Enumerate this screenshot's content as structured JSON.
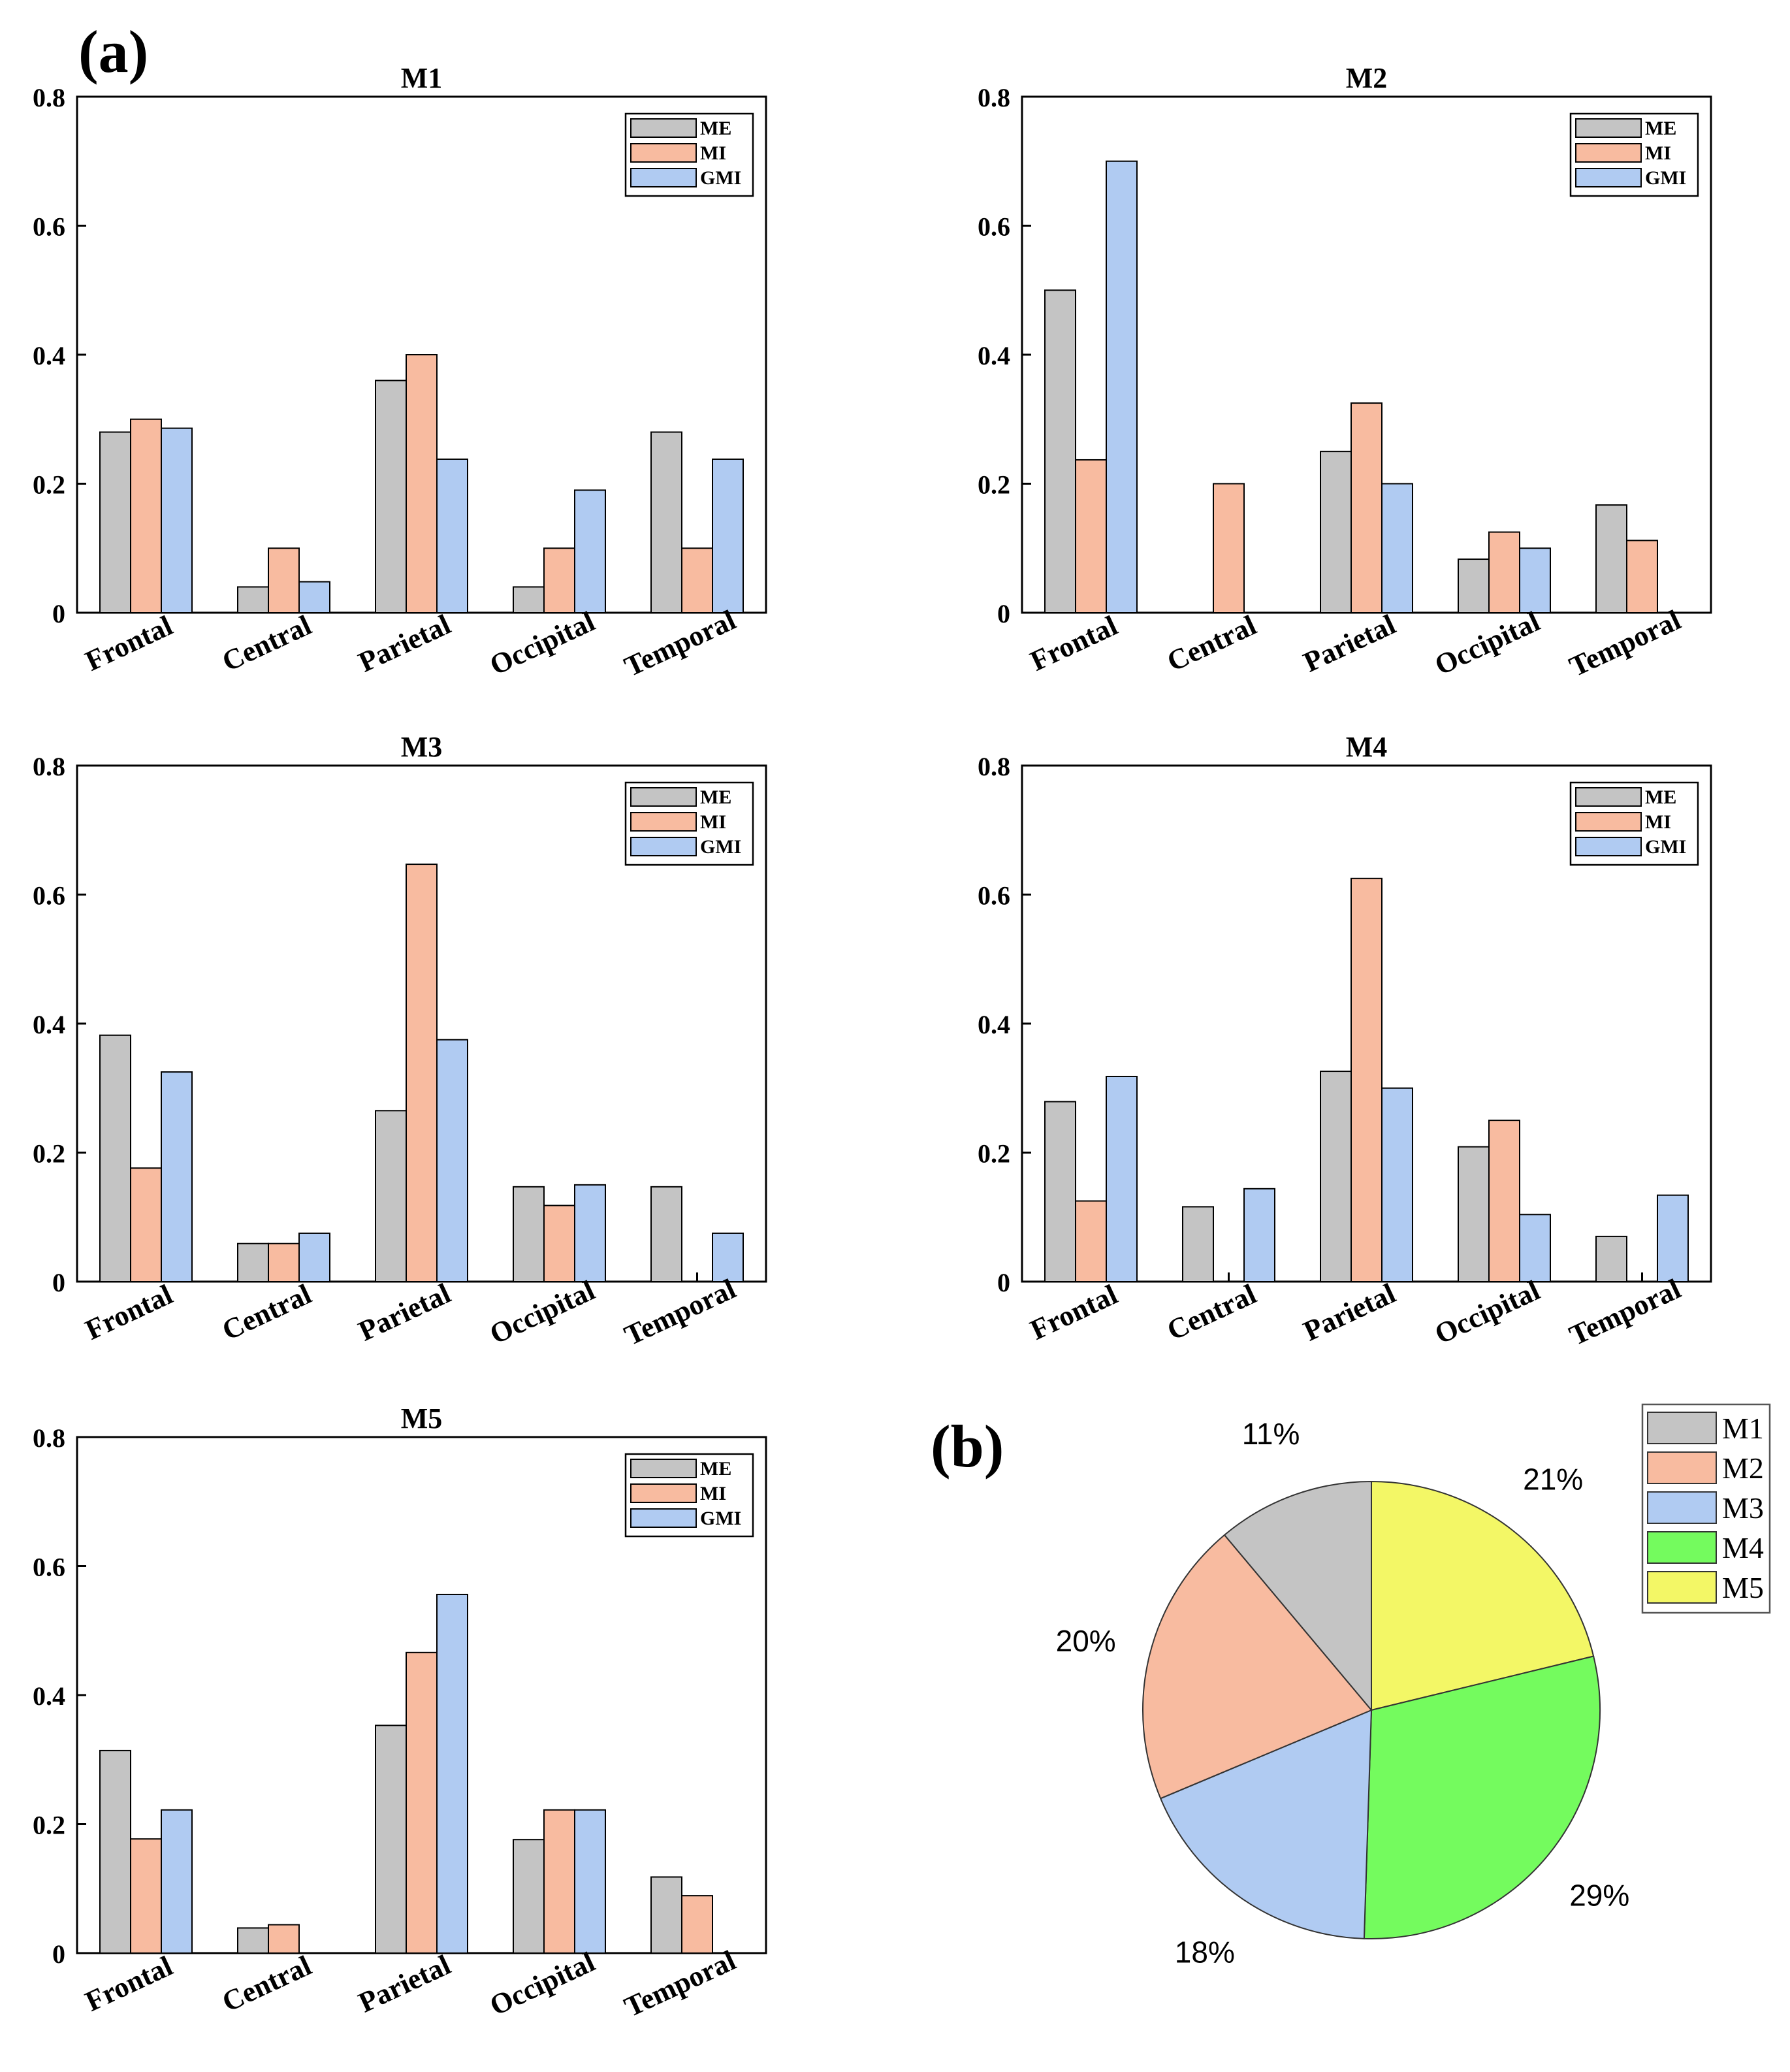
{
  "panel_a_label": "(a)",
  "panel_b_label": "(b)",
  "chart_data": [
    {
      "type": "bar",
      "title": "M1",
      "categories": [
        "Frontal",
        "Central",
        "Parietal",
        "Occipital",
        "Temporal"
      ],
      "series": [
        {
          "name": "ME",
          "color": "#c4c4c4",
          "values": [
            0.28,
            0.04,
            0.36,
            0.04,
            0.28
          ]
        },
        {
          "name": "MI",
          "color": "#f8bba0",
          "values": [
            0.3,
            0.1,
            0.4,
            0.1,
            0.1
          ]
        },
        {
          "name": "GMI",
          "color": "#b0cbf2",
          "values": [
            0.286,
            0.048,
            0.238,
            0.19,
            0.238
          ]
        }
      ],
      "ylim": [
        0,
        0.8
      ],
      "yticks": [
        "0",
        "0.2",
        "0.4",
        "0.6",
        "0.8"
      ],
      "legend": "top-right"
    },
    {
      "type": "bar",
      "title": "M2",
      "categories": [
        "Frontal",
        "Central",
        "Parietal",
        "Occipital",
        "Temporal"
      ],
      "series": [
        {
          "name": "ME",
          "color": "#c4c4c4",
          "values": [
            0.5,
            0,
            0.25,
            0.083,
            0.167
          ]
        },
        {
          "name": "MI",
          "color": "#f8bba0",
          "values": [
            0.237,
            0.2,
            0.325,
            0.125,
            0.112
          ]
        },
        {
          "name": "GMI",
          "color": "#b0cbf2",
          "values": [
            0.7,
            0,
            0.2,
            0.1,
            0
          ]
        }
      ],
      "ylim": [
        0,
        0.8
      ],
      "yticks": [
        "0",
        "0.2",
        "0.4",
        "0.6",
        "0.8"
      ],
      "legend": "top-right"
    },
    {
      "type": "bar",
      "title": "M3",
      "categories": [
        "Frontal",
        "Central",
        "Parietal",
        "Occipital",
        "Temporal"
      ],
      "series": [
        {
          "name": "ME",
          "color": "#c4c4c4",
          "values": [
            0.382,
            0.059,
            0.265,
            0.147,
            0.147
          ]
        },
        {
          "name": "MI",
          "color": "#f8bba0",
          "values": [
            0.176,
            0.059,
            0.647,
            0.118,
            0
          ]
        },
        {
          "name": "GMI",
          "color": "#b0cbf2",
          "values": [
            0.325,
            0.075,
            0.375,
            0.15,
            0.075
          ]
        }
      ],
      "ylim": [
        0,
        0.8
      ],
      "yticks": [
        "0",
        "0.2",
        "0.4",
        "0.6",
        "0.8"
      ],
      "legend": "top-right"
    },
    {
      "type": "bar",
      "title": "M4",
      "categories": [
        "Frontal",
        "Central",
        "Parietal",
        "Occipital",
        "Temporal"
      ],
      "series": [
        {
          "name": "ME",
          "color": "#c4c4c4",
          "values": [
            0.279,
            0.116,
            0.326,
            0.209,
            0.07
          ]
        },
        {
          "name": "MI",
          "color": "#f8bba0",
          "values": [
            0.125,
            0,
            0.625,
            0.25,
            0
          ]
        },
        {
          "name": "GMI",
          "color": "#b0cbf2",
          "values": [
            0.318,
            0.144,
            0.3,
            0.104,
            0.134
          ]
        }
      ],
      "ylim": [
        0,
        0.8
      ],
      "yticks": [
        "0",
        "0.2",
        "0.4",
        "0.6",
        "0.8"
      ],
      "legend": "top-right"
    },
    {
      "type": "bar",
      "title": "M5",
      "categories": [
        "Frontal",
        "Central",
        "Parietal",
        "Occipital",
        "Temporal"
      ],
      "series": [
        {
          "name": "ME",
          "color": "#c4c4c4",
          "values": [
            0.314,
            0.039,
            0.353,
            0.176,
            0.118
          ]
        },
        {
          "name": "MI",
          "color": "#f8bba0",
          "values": [
            0.177,
            0.044,
            0.466,
            0.222,
            0.089
          ]
        },
        {
          "name": "GMI",
          "color": "#b0cbf2",
          "values": [
            0.222,
            0,
            0.556,
            0.222,
            0
          ]
        }
      ],
      "ylim": [
        0,
        0.8
      ],
      "yticks": [
        "0",
        "0.2",
        "0.4",
        "0.6",
        "0.8"
      ],
      "legend": "top-right"
    },
    {
      "type": "pie",
      "labels": [
        "M1",
        "M2",
        "M3",
        "M4",
        "M5"
      ],
      "values": [
        11,
        20,
        18,
        29,
        21
      ],
      "value_labels": [
        "11%",
        "20%",
        "18%",
        "29%",
        "21%"
      ],
      "colors": [
        "#c4c4c4",
        "#f8bba0",
        "#b0cbf2",
        "#74fb5e",
        "#f3f766"
      ],
      "legend": "top-right"
    }
  ]
}
